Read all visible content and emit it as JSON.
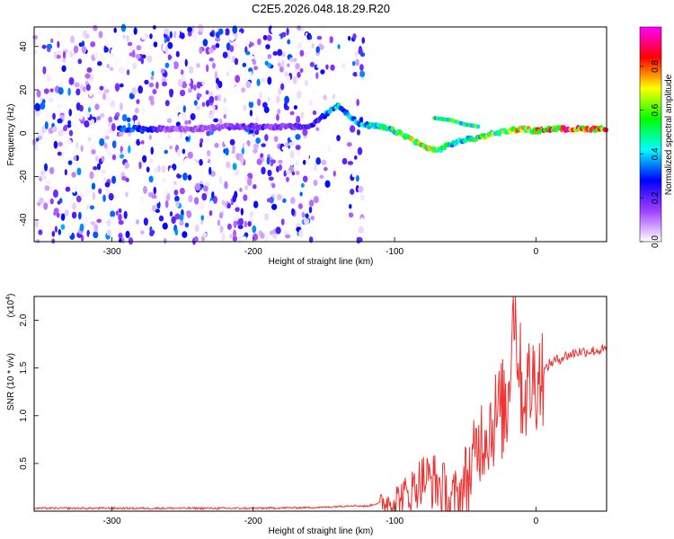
{
  "title": "C2E5.2026.048.18.29.R20",
  "chart_data": [
    {
      "type": "heatmap",
      "xlabel": "Height of straight line (km)",
      "ylabel": "Frequency (Hz)",
      "xlim": [
        -355,
        50
      ],
      "ylim": [
        -50,
        49
      ],
      "x_ticks": [
        -300,
        -200,
        -100,
        0
      ],
      "y_ticks": [
        -40,
        -20,
        0,
        20,
        40
      ],
      "colorbar": {
        "label": "Normalized spectral amplitude",
        "range": [
          0,
          0.98
        ],
        "ticks": [
          0.0,
          0.2,
          0.4,
          0.6,
          0.8
        ],
        "colormap": [
          "#ffffff",
          "#a040ff",
          "#0000ff",
          "#00ffff",
          "#00ff00",
          "#ffff00",
          "#ff0000",
          "#ff00ff"
        ]
      },
      "noise_region_x": [
        -355,
        -122
      ],
      "ridge": {
        "x": [
          -295,
          -280,
          -260,
          -240,
          -220,
          -200,
          -180,
          -160,
          -140,
          -125,
          -110,
          -100,
          -90,
          -80,
          -70,
          -60,
          -50,
          -40,
          -30,
          -20,
          -10,
          0,
          10,
          20,
          30,
          40,
          50
        ],
        "y": [
          2,
          2,
          2,
          2,
          3,
          3,
          3,
          3,
          13,
          4,
          3,
          1,
          -2,
          -6,
          -8,
          -5,
          -3,
          -2,
          0,
          1,
          2,
          1,
          2,
          2,
          2,
          2,
          2
        ],
        "amp": [
          0.4,
          0.35,
          0.15,
          0.15,
          0.2,
          0.25,
          0.2,
          0.25,
          0.5,
          0.45,
          0.55,
          0.6,
          0.7,
          0.8,
          0.65,
          0.5,
          0.55,
          0.6,
          0.7,
          0.75,
          0.8,
          0.85,
          0.9,
          0.9,
          0.95,
          0.95,
          0.98
        ]
      },
      "side_feature": {
        "x": [
          -72,
          -60,
          -50,
          -40
        ],
        "y": [
          7,
          6,
          4,
          3
        ]
      }
    },
    {
      "type": "line",
      "xlabel": "Height of straight line (km)",
      "ylabel": "SNR (10 * v/v)",
      "y_multiplier": "(x10",
      "y_multiplier_exp": "4",
      "xlim": [
        -355,
        50
      ],
      "ylim": [
        0,
        2.25
      ],
      "x_ticks": [
        -300,
        -200,
        -100,
        0
      ],
      "y_ticks": [
        0.5,
        1.0,
        1.5,
        2.0
      ],
      "y_tick_labels": [
        "0.5",
        "1.0",
        "1.5",
        "2.0"
      ],
      "series": [
        {
          "color": "#ee3333",
          "x": [
            -355,
            -300,
            -250,
            -200,
            -150,
            -130,
            -120,
            -110,
            -100,
            -90,
            -80,
            -70,
            -60,
            -55,
            -50,
            -45,
            -40,
            -35,
            -30,
            -25,
            -20,
            -16,
            -10,
            -5,
            0,
            5,
            10,
            20,
            30,
            40,
            50
          ],
          "y": [
            0.02,
            0.02,
            0.02,
            0.02,
            0.03,
            0.05,
            0.04,
            0.08,
            0.12,
            0.18,
            0.35,
            0.3,
            0.05,
            0.1,
            0.3,
            0.45,
            0.75,
            0.85,
            0.95,
            1.05,
            1.1,
            2.3,
            1.25,
            1.3,
            1.4,
            1.45,
            1.55,
            1.62,
            1.67,
            1.68,
            1.69
          ]
        }
      ]
    }
  ]
}
